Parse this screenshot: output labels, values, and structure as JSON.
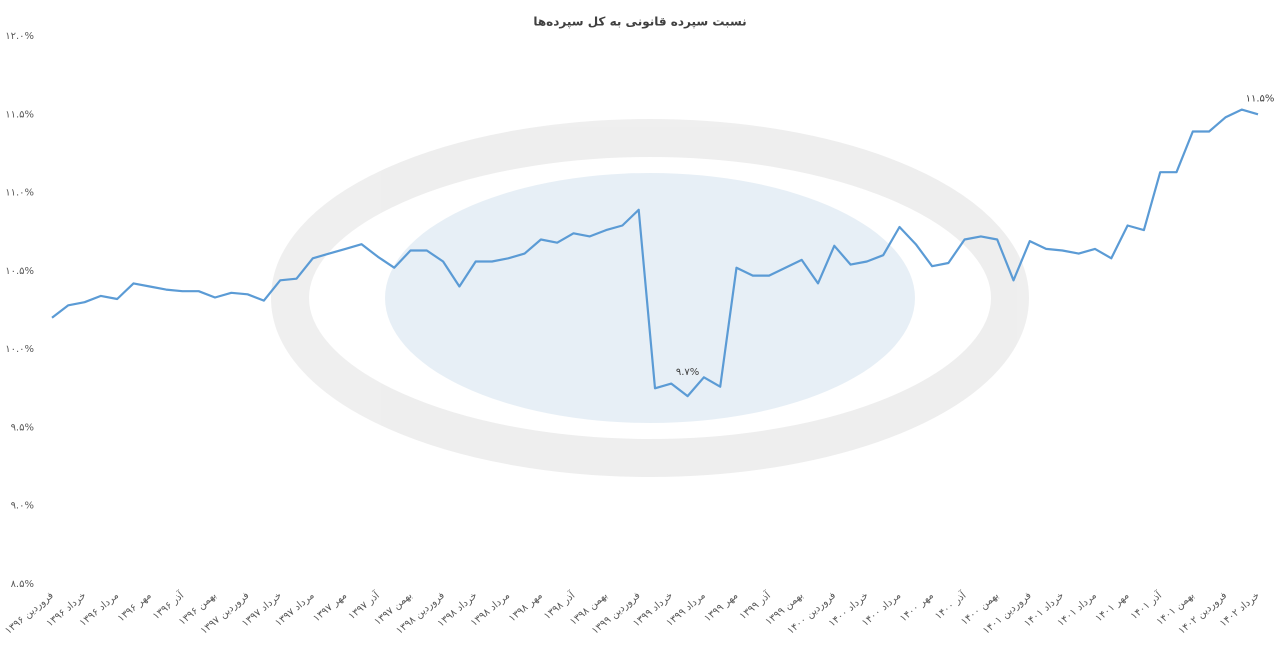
{
  "chart_data": {
    "type": "line",
    "title": "نسبت سپرده قانونی به کل سپرده‌ها",
    "categories": [
      "فروردین ۱۳۹۶",
      null,
      "خرداد ۱۳۹۶",
      null,
      "مرداد ۱۳۹۶",
      null,
      "مهر ۱۳۹۶",
      null,
      "آذر ۱۳۹۶",
      null,
      "بهمن ۱۳۹۶",
      null,
      "فروردین ۱۳۹۷",
      null,
      "خرداد ۱۳۹۷",
      null,
      "مرداد ۱۳۹۷",
      null,
      "مهر ۱۳۹۷",
      null,
      "آذر ۱۳۹۷",
      null,
      "بهمن ۱۳۹۷",
      null,
      "فروردین ۱۳۹۸",
      null,
      "خرداد ۱۳۹۸",
      null,
      "مرداد ۱۳۹۸",
      null,
      "مهر ۱۳۹۸",
      null,
      "آذر ۱۳۹۸",
      null,
      "بهمن ۱۳۹۸",
      null,
      "فروردین ۱۳۹۹",
      null,
      "خرداد ۱۳۹۹",
      null,
      "مرداد ۱۳۹۹",
      null,
      "مهر ۱۳۹۹",
      null,
      "آذر ۱۳۹۹",
      null,
      "بهمن ۱۳۹۹",
      null,
      "فروردین ۱۴۰۰",
      null,
      "خرداد ۱۴۰۰",
      null,
      "مرداد ۱۴۰۰",
      null,
      "مهر ۱۴۰۰",
      null,
      "آذر ۱۴۰۰",
      null,
      "بهمن ۱۴۰۰",
      null,
      "فروردین ۱۴۰۱",
      null,
      "خرداد ۱۴۰۱",
      null,
      "مرداد ۱۴۰۱",
      null,
      "مهر ۱۴۰۱",
      null,
      "آذر ۱۴۰۱",
      null,
      "بهمن ۱۴۰۱",
      null,
      "فروردین ۱۴۰۲",
      null,
      "خرداد ۱۴۰۲"
    ],
    "values": [
      10.2,
      10.28,
      10.3,
      10.34,
      10.32,
      10.42,
      10.4,
      10.38,
      10.37,
      10.37,
      10.33,
      10.36,
      10.35,
      10.31,
      10.44,
      10.45,
      10.58,
      10.61,
      10.64,
      10.67,
      10.59,
      10.52,
      10.63,
      10.63,
      10.56,
      10.4,
      10.56,
      10.56,
      10.58,
      10.61,
      10.7,
      10.68,
      10.74,
      10.72,
      10.76,
      10.79,
      10.89,
      9.75,
      9.78,
      9.7,
      9.82,
      9.76,
      10.52,
      10.47,
      10.47,
      10.52,
      10.57,
      10.42,
      10.66,
      10.54,
      10.56,
      10.6,
      10.78,
      10.67,
      10.53,
      10.55,
      10.7,
      10.72,
      10.7,
      10.44,
      10.69,
      10.64,
      10.63,
      10.61,
      10.64,
      10.58,
      10.79,
      10.76,
      11.13,
      11.13,
      11.39,
      11.39,
      11.48,
      11.53,
      11.5
    ],
    "value_labels": [
      null,
      null,
      null,
      null,
      null,
      null,
      null,
      null,
      null,
      null,
      null,
      null,
      null,
      null,
      null,
      null,
      null,
      null,
      null,
      null,
      null,
      null,
      null,
      null,
      null,
      null,
      null,
      null,
      null,
      null,
      null,
      null,
      null,
      null,
      null,
      null,
      null,
      null,
      null,
      "۹.۷%",
      null,
      null,
      null,
      null,
      null,
      null,
      null,
      null,
      null,
      null,
      null,
      null,
      null,
      null,
      null,
      null,
      null,
      null,
      null,
      null,
      null,
      null,
      null,
      null,
      null,
      null,
      null,
      null,
      null,
      null,
      null,
      null,
      null,
      null,
      "۱۱.۵%"
    ],
    "color": "#5b9bd5",
    "ylim": [
      8.5,
      12.0
    ],
    "yticks": [
      {
        "value": 8.5,
        "label": "۸.۵%"
      },
      {
        "value": 9.0,
        "label": "۹.۰%"
      },
      {
        "value": 9.5,
        "label": "۹.۵%"
      },
      {
        "value": 10.0,
        "label": "۱۰.۰%"
      },
      {
        "value": 10.5,
        "label": "۱۰.۵%"
      },
      {
        "value": 11.0,
        "label": "۱۱.۰%"
      },
      {
        "value": 11.5,
        "label": "۱۱.۵%"
      },
      {
        "value": 12.0,
        "label": "۱۲.۰%"
      }
    ],
    "grid": false
  }
}
